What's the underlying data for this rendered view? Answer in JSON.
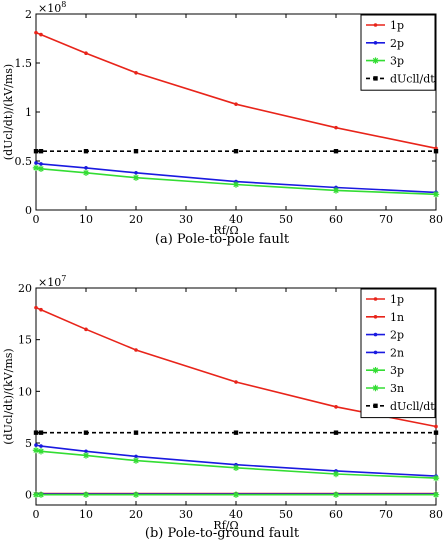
{
  "chart_data": [
    {
      "type": "line",
      "caption": "(a)  Pole-to-pole fault",
      "xlabel": "Rf/Ω",
      "ylabel": "(dUcl/dt)/(kV/ms)",
      "exponent_base": "×10",
      "exponent_power": "8",
      "xlim": [
        0,
        80
      ],
      "ylim": [
        0,
        2
      ],
      "xticks": [
        0,
        10,
        20,
        30,
        40,
        50,
        60,
        70,
        80
      ],
      "yticks": [
        0,
        0.5,
        1,
        1.5,
        2
      ],
      "ytick_labels": [
        "0",
        "0.5",
        "1",
        "1.5",
        "2"
      ],
      "x": [
        0,
        1,
        10,
        20,
        40,
        60,
        80
      ],
      "legend_position": "top-right",
      "grid": false,
      "series": [
        {
          "name": "1p",
          "color": "#e8241a",
          "marker": "dot",
          "dashed": false,
          "values": [
            1.81,
            1.79,
            1.6,
            1.4,
            1.08,
            0.84,
            0.63
          ]
        },
        {
          "name": "2p",
          "color": "#1a1ae0",
          "marker": "dot",
          "dashed": false,
          "values": [
            0.48,
            0.47,
            0.43,
            0.38,
            0.29,
            0.23,
            0.18
          ]
        },
        {
          "name": "3p",
          "color": "#33dd33",
          "marker": "star",
          "dashed": false,
          "values": [
            0.43,
            0.42,
            0.38,
            0.33,
            0.26,
            0.2,
            0.16
          ]
        },
        {
          "name": "dUcll/dt",
          "color": "#000000",
          "marker": "square",
          "dashed": true,
          "values": [
            0.6,
            0.6,
            0.6,
            0.6,
            0.6,
            0.6,
            0.6
          ]
        }
      ]
    },
    {
      "type": "line",
      "caption": "(b)  Pole-to-ground fault",
      "xlabel": "Rf/Ω",
      "ylabel": "(dUcl/dt)/(kV/ms)",
      "exponent_base": "×10",
      "exponent_power": "7",
      "xlim": [
        0,
        80
      ],
      "ylim": [
        -1,
        20
      ],
      "xticks": [
        0,
        10,
        20,
        30,
        40,
        50,
        60,
        70,
        80
      ],
      "yticks": [
        0,
        5,
        10,
        15,
        20
      ],
      "ytick_labels": [
        "0",
        "5",
        "10",
        "15",
        "20"
      ],
      "x": [
        0,
        1,
        10,
        20,
        40,
        60,
        80
      ],
      "legend_position": "top-right",
      "grid": false,
      "series": [
        {
          "name": "1p",
          "color": "#e8241a",
          "marker": "dot",
          "dashed": false,
          "values": [
            18.1,
            17.9,
            16.0,
            14.0,
            10.9,
            8.5,
            6.6
          ]
        },
        {
          "name": "1n",
          "color": "#e8241a",
          "marker": "dot",
          "dashed": false,
          "values": [
            0.1,
            0.1,
            0.1,
            0.1,
            0.1,
            0.1,
            0.1
          ]
        },
        {
          "name": "2p",
          "color": "#1a1ae0",
          "marker": "dot",
          "dashed": false,
          "values": [
            4.8,
            4.7,
            4.2,
            3.7,
            2.9,
            2.3,
            1.8
          ]
        },
        {
          "name": "2n",
          "color": "#1a1ae0",
          "marker": "dot",
          "dashed": false,
          "values": [
            0.05,
            0.05,
            0.05,
            0.05,
            0.05,
            0.05,
            0.05
          ]
        },
        {
          "name": "3p",
          "color": "#33dd33",
          "marker": "star",
          "dashed": false,
          "values": [
            4.3,
            4.2,
            3.8,
            3.3,
            2.6,
            2.0,
            1.6
          ]
        },
        {
          "name": "3n",
          "color": "#33dd33",
          "marker": "star",
          "dashed": false,
          "values": [
            0.0,
            0.0,
            0.0,
            0.0,
            0.0,
            0.0,
            0.0
          ]
        },
        {
          "name": "dUcll/dt",
          "color": "#000000",
          "marker": "square",
          "dashed": true,
          "values": [
            6.0,
            6.0,
            6.0,
            6.0,
            6.0,
            6.0,
            6.0
          ]
        }
      ]
    }
  ]
}
